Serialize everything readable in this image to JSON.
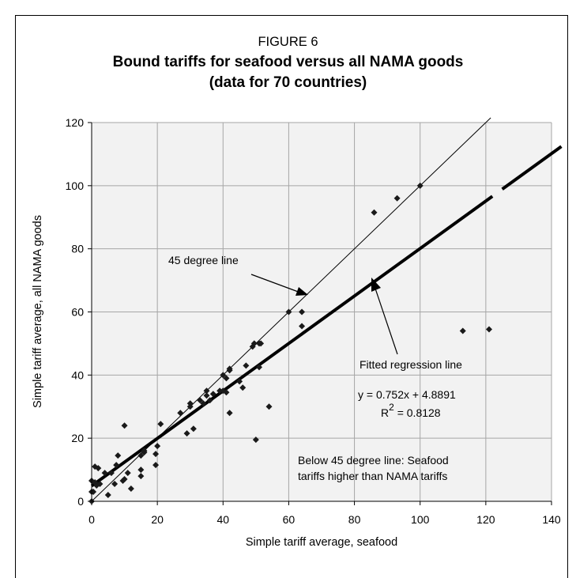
{
  "figure_label": "FIGURE 6",
  "title_line1": "Bound tariffs for seafood versus all NAMA goods",
  "title_line2": "(data for 70 countries)",
  "chart_data": {
    "type": "scatter",
    "xlabel": "Simple tariff average, seafood",
    "ylabel": "Simple tariff average, all NAMA goods",
    "xlim": [
      0,
      140
    ],
    "ylim": [
      0,
      120
    ],
    "xticks": [
      0,
      20,
      40,
      60,
      80,
      100,
      120,
      140
    ],
    "yticks": [
      0,
      20,
      40,
      60,
      80,
      100,
      120
    ],
    "grid": true,
    "points": [
      [
        0,
        0
      ],
      [
        0,
        3
      ],
      [
        0,
        6.5
      ],
      [
        0.5,
        3
      ],
      [
        1,
        6
      ],
      [
        1,
        11
      ],
      [
        1.5,
        5
      ],
      [
        2,
        10.5
      ],
      [
        2.5,
        5.5
      ],
      [
        4,
        9
      ],
      [
        5,
        2
      ],
      [
        6,
        9
      ],
      [
        7,
        5.5
      ],
      [
        7.5,
        11.5
      ],
      [
        8,
        14.5
      ],
      [
        9.5,
        6.5
      ],
      [
        10,
        7
      ],
      [
        10,
        24
      ],
      [
        11,
        9
      ],
      [
        12,
        4
      ],
      [
        15,
        8
      ],
      [
        15,
        10
      ],
      [
        15,
        14.5
      ],
      [
        16,
        15.5
      ],
      [
        16,
        16
      ],
      [
        19.5,
        11.5
      ],
      [
        19.5,
        15
      ],
      [
        20,
        17.5
      ],
      [
        21,
        24.5
      ],
      [
        27,
        28
      ],
      [
        29,
        21.5
      ],
      [
        30,
        30
      ],
      [
        30,
        31
      ],
      [
        31,
        23
      ],
      [
        33,
        32
      ],
      [
        34,
        31
      ],
      [
        35,
        35
      ],
      [
        35,
        33.5
      ],
      [
        36,
        32
      ],
      [
        37,
        34
      ],
      [
        39,
        35
      ],
      [
        40,
        35
      ],
      [
        40,
        40
      ],
      [
        41,
        34.5
      ],
      [
        41,
        39
      ],
      [
        42,
        41.5
      ],
      [
        42,
        42
      ],
      [
        42,
        28
      ],
      [
        45,
        38
      ],
      [
        46,
        36
      ],
      [
        47,
        43
      ],
      [
        49,
        49
      ],
      [
        49.5,
        50
      ],
      [
        50,
        19.5
      ],
      [
        51,
        50
      ],
      [
        51,
        42.5
      ],
      [
        51.5,
        50
      ],
      [
        54,
        30
      ],
      [
        60,
        60
      ],
      [
        64,
        60
      ],
      [
        64,
        55.5
      ],
      [
        86,
        91.5
      ],
      [
        93,
        96
      ],
      [
        100,
        100
      ],
      [
        113,
        54
      ],
      [
        121,
        54.5
      ]
    ],
    "lines": [
      {
        "name": "45 degree line",
        "slope": 1,
        "intercept": 0
      },
      {
        "name": "Fitted regression line",
        "slope": 0.752,
        "intercept": 4.8891
      }
    ],
    "annotations": {
      "forty_five": "45 degree line",
      "regression": "Fitted regression line",
      "equation": "y = 0.752x + 4.8891",
      "r2_label": "R",
      "r2_sup": "2",
      "r2_value": " = 0.8128",
      "below_line1": "Below 45 degree line: Seafood",
      "below_line2": "tariffs higher than NAMA tariffs"
    }
  }
}
